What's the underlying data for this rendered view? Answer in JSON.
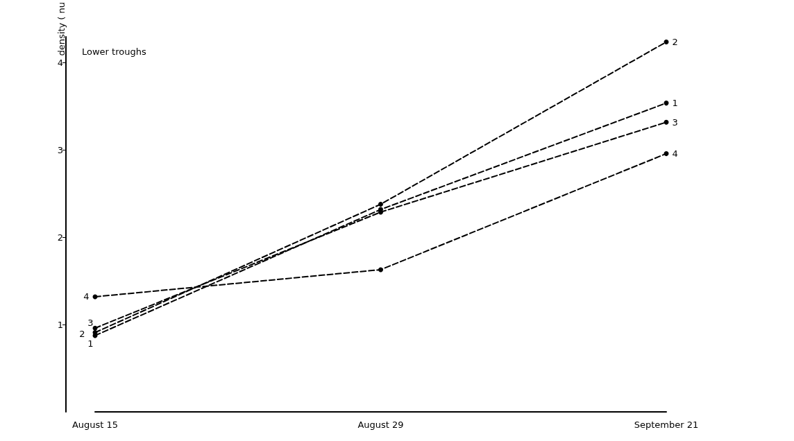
{
  "chart_data": {
    "type": "line",
    "ylabel": "density ( nu",
    "annotations": [
      "Lower troughs"
    ],
    "categories": [
      "August 15",
      "August 29",
      "September 21"
    ],
    "series": [
      {
        "name": "1",
        "color": "#000000",
        "values": [
          0.875,
          2.32,
          3.54
        ]
      },
      {
        "name": "2",
        "color": "#000000",
        "values": [
          0.91,
          2.38,
          4.24
        ]
      },
      {
        "name": "3",
        "color": "#000000",
        "values": [
          0.96,
          2.29,
          3.32
        ]
      },
      {
        "name": "4",
        "color": "#000000",
        "values": [
          1.32,
          1.63,
          2.96
        ]
      }
    ],
    "ylim": [
      0,
      4.3
    ],
    "yticks": [
      1,
      2,
      3,
      4
    ],
    "grid": false,
    "legend": false,
    "marker": "circle",
    "line_style": "dashed"
  }
}
